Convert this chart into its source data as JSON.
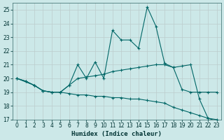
{
  "xlabel": "Humidex (Indice chaleur)",
  "bg_color": "#cce8e8",
  "grid_color": "#aacccc",
  "line_color": "#006666",
  "xlim": [
    -0.5,
    23.5
  ],
  "ylim": [
    17,
    25.5
  ],
  "yticks": [
    17,
    18,
    19,
    20,
    21,
    22,
    23,
    24,
    25
  ],
  "xticks": [
    0,
    1,
    2,
    3,
    4,
    5,
    6,
    7,
    8,
    9,
    10,
    11,
    12,
    13,
    14,
    15,
    16,
    17,
    18,
    19,
    20,
    21,
    22,
    23
  ],
  "curve1_x": [
    0,
    1,
    2,
    3,
    4,
    5,
    6,
    7,
    8,
    9,
    10,
    11,
    12,
    13,
    14,
    15,
    16,
    17,
    18,
    19,
    20,
    21,
    22,
    23
  ],
  "curve1_y": [
    20.0,
    19.8,
    19.5,
    19.1,
    19.0,
    19.0,
    19.5,
    21.0,
    20.0,
    21.2,
    20.0,
    23.5,
    22.8,
    22.8,
    22.2,
    25.2,
    23.8,
    21.1,
    20.8,
    20.9,
    21.0,
    18.5,
    17.1,
    16.9
  ],
  "curve2_x": [
    0,
    1,
    2,
    3,
    4,
    5,
    6,
    7,
    8,
    9,
    10,
    11,
    12,
    13,
    14,
    15,
    16,
    17,
    18,
    19,
    20,
    21,
    22,
    23
  ],
  "curve2_y": [
    20.0,
    19.8,
    19.5,
    19.1,
    19.0,
    19.0,
    19.5,
    20.0,
    20.1,
    20.2,
    20.3,
    20.5,
    20.6,
    20.7,
    20.8,
    20.9,
    21.0,
    21.0,
    20.8,
    19.2,
    19.0,
    19.0,
    19.0,
    19.0
  ],
  "curve3_x": [
    0,
    2,
    3,
    4,
    5,
    6,
    7,
    8,
    9,
    10,
    11,
    12,
    13,
    14,
    15,
    16,
    17,
    18,
    19,
    20,
    21,
    22,
    23
  ],
  "curve3_y": [
    20.0,
    19.5,
    19.1,
    19.0,
    19.0,
    18.9,
    18.8,
    18.8,
    18.7,
    18.7,
    18.6,
    18.6,
    18.5,
    18.5,
    18.4,
    18.3,
    18.2,
    17.9,
    17.7,
    17.5,
    17.3,
    17.1,
    17.0
  ]
}
